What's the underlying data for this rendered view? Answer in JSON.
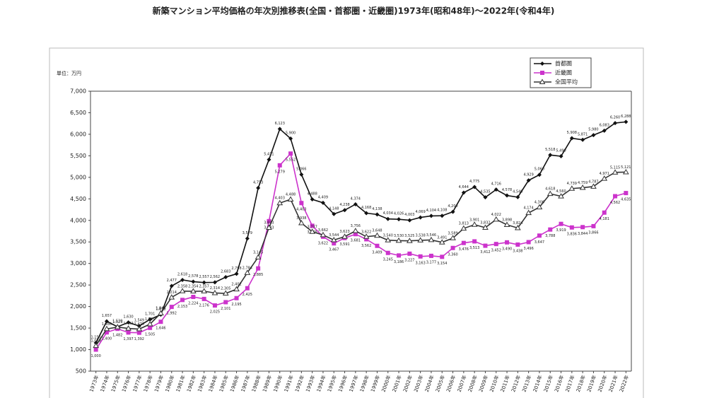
{
  "chart_data": {
    "type": "line",
    "title": "新築マンション平均価格の年次別推移表(全国・首都圏・近畿圏)1973年(昭和48年)～2022年(令和4年)",
    "y_label": "単位：万円",
    "categories": [
      "1973年",
      "1974年",
      "1975年",
      "1976年",
      "1977年",
      "1978年",
      "1979年",
      "1980年",
      "1981年",
      "1982年",
      "1983年",
      "1984年",
      "1985年",
      "1986年",
      "1987年",
      "1988年",
      "1989年",
      "1990年",
      "1991年",
      "1992年",
      "1993年",
      "1994年",
      "1995年",
      "1996年",
      "1997年",
      "1998年",
      "1999年",
      "2000年",
      "2001年",
      "2002年",
      "2003年",
      "2004年",
      "2005年",
      "2006年",
      "2007年",
      "2008年",
      "2009年",
      "2010年",
      "2011年",
      "2012年",
      "2013年",
      "2014年",
      "2015年",
      "2016年",
      "2017年",
      "2018年",
      "2019年",
      "2020年",
      "2021年",
      "2022年"
    ],
    "ylim": [
      500,
      7000
    ],
    "yticks": [
      {
        "value": 500,
        "label": "500"
      },
      {
        "value": 1000,
        "label": "1,000"
      },
      {
        "value": 1500,
        "label": "1,500"
      },
      {
        "value": 2000,
        "label": "2,000"
      },
      {
        "value": 2500,
        "label": "2,500"
      },
      {
        "value": 3000,
        "label": "3,000"
      },
      {
        "value": 3500,
        "label": "3,500"
      },
      {
        "value": 4000,
        "label": "4,000"
      },
      {
        "value": 4500,
        "label": "4,500"
      },
      {
        "value": 5000,
        "label": "5,000"
      },
      {
        "value": 5500,
        "label": "5,500"
      },
      {
        "value": 6000,
        "label": "6,000"
      },
      {
        "value": 6500,
        "label": "6,500"
      },
      {
        "value": 7000,
        "label": "7,000"
      }
    ],
    "grid": false,
    "legend": "top-right",
    "series": [
      {
        "name": "首都圏",
        "color": "#111111",
        "marker": "diamond",
        "values": [
          1156,
          1657,
          1530,
          1630,
          1549,
          1701,
          1811,
          2477,
          2618,
          2578,
          2557,
          2562,
          2683,
          2758,
          3579,
          4753,
          5411,
          6123,
          5900,
          5066,
          4488,
          4409,
          4148,
          4238,
          4374,
          4168,
          4138,
          4034,
          4026,
          4003,
          4069,
          4104,
          4108,
          4200,
          4644,
          4775,
          4535,
          4716,
          4578,
          4540,
          4929,
          5060,
          5518,
          5490,
          5908,
          5871,
          5980,
          6083,
          6260,
          6288
        ],
        "value_labels": [
          "1,156",
          "1,657",
          "1,530",
          "1,630",
          "1,549",
          "1,701",
          "1,811",
          "2,477",
          "2,618",
          "2,578",
          "2,557",
          "2,562",
          "2,683",
          "2,758",
          "3,579",
          "4,753",
          "5,411",
          "6,123",
          "5,900",
          "5,066",
          "4,488",
          "4,409",
          "4,148",
          "4,238",
          "4,374",
          "4,168",
          "4,138",
          "4,034",
          "4,026",
          "4,003",
          "4,069",
          "4,104",
          "4,108",
          "4,200",
          "4,644",
          "4,775",
          "4,535",
          "4,716",
          "4,578",
          "4,540",
          "4,929",
          "5,060",
          "5,518",
          "5,490",
          "5,908",
          "5,871",
          "5,980",
          "6,083",
          "6,260",
          "6,288"
        ]
      },
      {
        "name": "近畿圏",
        "color": "#cc33cc",
        "marker": "square",
        "values": [
          1000,
          1400,
          1482,
          1397,
          1392,
          1505,
          1646,
          1992,
          2153,
          2224,
          2176,
          2025,
          2101,
          2195,
          2425,
          2885,
          3983,
          5279,
          5552,
          4403,
          3875,
          3622,
          3467,
          3591,
          3681,
          3562,
          3409,
          3245,
          3186,
          3227,
          3163,
          3177,
          3154,
          3360,
          3476,
          3513,
          3412,
          3452,
          3490,
          3438,
          3496,
          3647,
          3788,
          3919,
          3836,
          3844,
          3866,
          4181,
          4562,
          4635
        ],
        "value_labels": [
          "1,000",
          "1,400",
          "1,482",
          "1,397",
          "1,392",
          "1,505",
          "1,646",
          "1,992",
          "2,153",
          "2,224",
          "2,176",
          "2,025",
          "2,101",
          "2,195",
          "2,425",
          "2,885",
          "3,983",
          "5,279",
          "5,552",
          "4,403",
          "3,875",
          "3,622",
          "3,467",
          "3,591",
          "3,681",
          "3,562",
          "3,409",
          "3,245",
          "3,186",
          "3,227",
          "3,163",
          "3,177",
          "3,154",
          "3,360",
          "3,476",
          "3,513",
          "3,412",
          "3,452",
          "3,490",
          "3,438",
          "3,496",
          "3,647",
          "3,788",
          "3,919",
          "3,836",
          "3,844",
          "3,866",
          "4,181",
          "4,562",
          "4,635"
        ]
      },
      {
        "name": "全国平均",
        "color": "#333333",
        "marker": "triangle",
        "values": [
          1089,
          1480,
          1523,
          1492,
          1476,
          1591,
          1844,
          2214,
          2358,
          2354,
          2357,
          2314,
          2305,
          2402,
          2784,
          3145,
          3833,
          4403,
          4488,
          3938,
          3737,
          3662,
          3544,
          3623,
          3756,
          3622,
          3648,
          3540,
          3530,
          3525,
          3538,
          3546,
          3491,
          3589,
          3813,
          3901,
          3832,
          4022,
          3898,
          3824,
          4174,
          4306,
          4618,
          4560,
          4739,
          4759,
          4787,
          4971,
          5115,
          5121
        ],
        "value_labels": [
          "1,089",
          "1,480",
          "1,523",
          "1,492",
          "1,476",
          "1,591",
          "1,844",
          "2,214",
          "2,358",
          "2,354",
          "2,357",
          "2,314",
          "2,305",
          "2,402",
          "2,784",
          "3,145",
          "3,833",
          "4,403",
          "4,488",
          "3,938",
          "3,737",
          "3,662",
          "3,544",
          "3,623",
          "3,756",
          "3,622",
          "3,648",
          "3,540",
          "3,530",
          "3,525",
          "3,538",
          "3,546",
          "3,491",
          "3,589",
          "3,813",
          "3,901",
          "3,832",
          "4,022",
          "3,898",
          "3,824",
          "4,174",
          "4,306",
          "4,618",
          "4,560",
          "4,739",
          "4,759",
          "4,787",
          "4,971",
          "5,115",
          "5,121"
        ]
      }
    ]
  }
}
